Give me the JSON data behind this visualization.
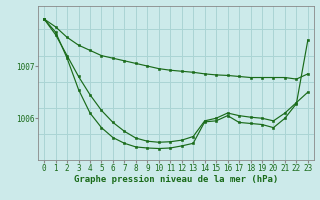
{
  "bg_color": "#cceaea",
  "grid_color": "#aad4d4",
  "line_color": "#1a6b1a",
  "marker_color": "#1a6b1a",
  "xlabel": "Graphe pression niveau de la mer (hPa)",
  "xlabel_fontsize": 6.5,
  "tick_label_fontsize": 5.5,
  "ylim": [
    1005.2,
    1008.15
  ],
  "yticks": [
    1006,
    1007
  ],
  "xlim": [
    -0.5,
    23.5
  ],
  "xticks": [
    0,
    1,
    2,
    3,
    4,
    5,
    6,
    7,
    8,
    9,
    10,
    11,
    12,
    13,
    14,
    15,
    16,
    17,
    18,
    19,
    20,
    21,
    22,
    23
  ],
  "series": [
    [
      1007.9,
      1007.75,
      1007.55,
      1007.4,
      1007.3,
      1007.2,
      1007.15,
      1007.1,
      1007.05,
      1007.0,
      1006.95,
      1006.92,
      1006.9,
      1006.88,
      1006.85,
      1006.83,
      1006.82,
      1006.8,
      1006.78,
      1006.78,
      1006.78,
      1006.78,
      1006.75,
      1006.85
    ],
    [
      1007.9,
      1007.6,
      1007.2,
      1006.8,
      1006.45,
      1006.15,
      1005.92,
      1005.75,
      1005.62,
      1005.56,
      1005.54,
      1005.55,
      1005.58,
      1005.65,
      1005.95,
      1006.0,
      1006.1,
      1006.05,
      1006.02,
      1006.0,
      1005.95,
      1006.1,
      1006.3,
      1006.5
    ],
    [
      1007.9,
      1007.65,
      1007.15,
      1006.55,
      1006.1,
      1005.82,
      1005.63,
      1005.52,
      1005.45,
      1005.43,
      1005.42,
      1005.43,
      1005.47,
      1005.52,
      1005.93,
      1005.95,
      1006.05,
      1005.92,
      1005.9,
      1005.88,
      1005.82,
      1006.0,
      1006.28,
      1007.5
    ]
  ]
}
